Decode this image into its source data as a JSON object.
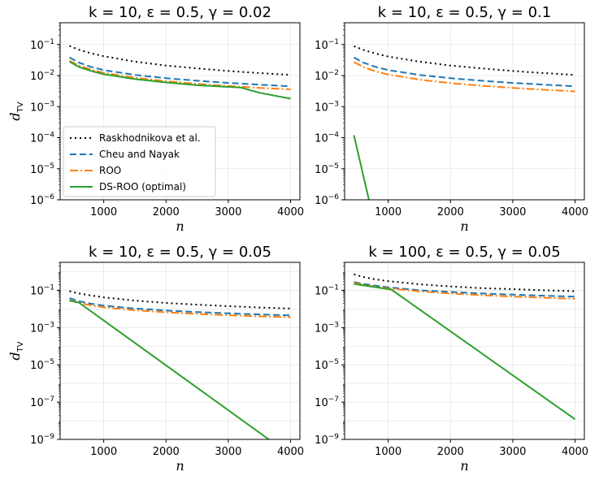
{
  "chart_data": [
    {
      "type": "line",
      "title": "k = 10,  ε = 0.5,  γ = 0.02",
      "xlabel": "n",
      "ylabel": "d_TV",
      "xlim": [
        300,
        4150
      ],
      "ylim_exp": [
        -6,
        -0.3
      ],
      "xticks": [
        1000,
        2000,
        3000,
        4000
      ],
      "yticks_exp": [
        -6,
        -5,
        -4,
        -3,
        -2,
        -1
      ],
      "legend": "center-left",
      "series": [
        {
          "name": "Raskhodnikova et al.",
          "x": [
            450,
            600,
            800,
            1000,
            1500,
            2000,
            2500,
            3000,
            3500,
            4000
          ],
          "y": [
            0.09,
            0.068,
            0.052,
            0.042,
            0.028,
            0.021,
            0.017,
            0.014,
            0.012,
            0.0105
          ]
        },
        {
          "name": "Cheu and Nayak",
          "x": [
            450,
            600,
            800,
            1000,
            1500,
            2000,
            2500,
            3000,
            3500,
            4000
          ],
          "y": [
            0.038,
            0.026,
            0.019,
            0.015,
            0.0105,
            0.0082,
            0.0068,
            0.0058,
            0.0051,
            0.0045
          ]
        },
        {
          "name": "ROO",
          "x": [
            450,
            600,
            800,
            1000,
            1500,
            2000,
            2500,
            3000,
            3500,
            4000
          ],
          "y": [
            0.03,
            0.021,
            0.0155,
            0.0122,
            0.0085,
            0.0066,
            0.0054,
            0.0046,
            0.004,
            0.0036
          ]
        },
        {
          "name": "DS-ROO (optimal)",
          "x": [
            450,
            600,
            800,
            1000,
            1500,
            2000,
            2500,
            3000,
            3200,
            3500,
            4000
          ],
          "y": [
            0.028,
            0.019,
            0.014,
            0.011,
            0.0077,
            0.006,
            0.0049,
            0.0043,
            0.0041,
            0.0028,
            0.0018
          ]
        }
      ]
    },
    {
      "type": "line",
      "title": "k = 10,  ε = 0.5,  γ = 0.1",
      "xlabel": "n",
      "ylabel": "",
      "xlim": [
        300,
        4150
      ],
      "ylim_exp": [
        -6,
        -0.3
      ],
      "xticks": [
        1000,
        2000,
        3000,
        4000
      ],
      "yticks_exp": [
        -6,
        -5,
        -4,
        -3,
        -2,
        -1
      ],
      "series": [
        {
          "name": "Raskhodnikova et al.",
          "x": [
            450,
            600,
            800,
            1000,
            1500,
            2000,
            2500,
            3000,
            3500,
            4000
          ],
          "y": [
            0.088,
            0.067,
            0.051,
            0.041,
            0.028,
            0.021,
            0.017,
            0.014,
            0.012,
            0.0105
          ]
        },
        {
          "name": "Cheu and Nayak",
          "x": [
            450,
            600,
            800,
            1000,
            1500,
            2000,
            2500,
            3000,
            3500,
            4000
          ],
          "y": [
            0.038,
            0.026,
            0.019,
            0.015,
            0.0105,
            0.0082,
            0.0068,
            0.0058,
            0.0051,
            0.0045
          ]
        },
        {
          "name": "ROO",
          "x": [
            450,
            600,
            800,
            1000,
            1500,
            2000,
            2500,
            3000,
            3500,
            4000
          ],
          "y": [
            0.027,
            0.019,
            0.0135,
            0.0108,
            0.0074,
            0.0057,
            0.0047,
            0.004,
            0.0035,
            0.0031
          ]
        },
        {
          "name": "DS-ROO (optimal)",
          "x": [
            450,
            690
          ],
          "y": [
            0.00012,
            1e-06
          ]
        }
      ]
    },
    {
      "type": "line",
      "title": "k = 10,  ε = 0.5,  γ = 0.05",
      "xlabel": "n",
      "ylabel": "d_TV",
      "xlim": [
        300,
        4150
      ],
      "ylim_exp": [
        -9,
        0.5
      ],
      "xticks": [
        1000,
        2000,
        3000,
        4000
      ],
      "yticks_exp": [
        -9,
        -7,
        -5,
        -3,
        -1
      ],
      "series": [
        {
          "name": "Raskhodnikova et al.",
          "x": [
            450,
            600,
            800,
            1000,
            1500,
            2000,
            2500,
            3000,
            3500,
            4000
          ],
          "y": [
            0.09,
            0.068,
            0.052,
            0.042,
            0.028,
            0.021,
            0.017,
            0.014,
            0.012,
            0.0105
          ]
        },
        {
          "name": "Cheu and Nayak",
          "x": [
            450,
            600,
            800,
            1000,
            1500,
            2000,
            2500,
            3000,
            3500,
            4000
          ],
          "y": [
            0.038,
            0.026,
            0.019,
            0.015,
            0.0105,
            0.0082,
            0.0068,
            0.0058,
            0.0051,
            0.0045
          ]
        },
        {
          "name": "ROO",
          "x": [
            450,
            600,
            800,
            1000,
            1500,
            2000,
            2500,
            3000,
            3500,
            4000
          ],
          "y": [
            0.03,
            0.021,
            0.0155,
            0.0122,
            0.0085,
            0.0066,
            0.0054,
            0.0046,
            0.004,
            0.0036
          ]
        },
        {
          "name": "DS-ROO (optimal)",
          "x": [
            450,
            600,
            3650
          ],
          "y": [
            0.028,
            0.022,
            1e-09
          ]
        }
      ]
    },
    {
      "type": "line",
      "title": "k = 100,  ε = 0.5,  γ = 0.05",
      "xlabel": "n",
      "ylabel": "",
      "xlim": [
        300,
        4150
      ],
      "ylim_exp": [
        -9,
        0.5
      ],
      "xticks": [
        1000,
        2000,
        3000,
        4000
      ],
      "yticks_exp": [
        -9,
        -7,
        -5,
        -3,
        -1
      ],
      "series": [
        {
          "name": "Raskhodnikova et al.",
          "x": [
            450,
            600,
            800,
            1000,
            1500,
            2000,
            2500,
            3000,
            3500,
            4000
          ],
          "y": [
            0.72,
            0.52,
            0.38,
            0.31,
            0.21,
            0.16,
            0.13,
            0.115,
            0.1,
            0.09
          ]
        },
        {
          "name": "Cheu and Nayak",
          "x": [
            450,
            600,
            800,
            1000,
            1500,
            2000,
            2500,
            3000,
            3500,
            4000
          ],
          "y": [
            0.28,
            0.22,
            0.175,
            0.145,
            0.1,
            0.082,
            0.068,
            0.058,
            0.051,
            0.046
          ]
        },
        {
          "name": "ROO",
          "x": [
            450,
            600,
            800,
            1000,
            1500,
            2000,
            2500,
            3000,
            3500,
            4000
          ],
          "y": [
            0.25,
            0.2,
            0.155,
            0.128,
            0.088,
            0.068,
            0.055,
            0.046,
            0.04,
            0.035
          ]
        },
        {
          "name": "DS-ROO (optimal)",
          "x": [
            450,
            1050,
            4000
          ],
          "y": [
            0.22,
            0.11,
            1.2e-08
          ]
        }
      ]
    }
  ],
  "legend_labels": [
    "Raskhodnikova et al.",
    "Cheu and Nayak",
    "ROO",
    "DS-ROO (optimal)"
  ],
  "styles": {
    "Raskhodnikova et al.": {
      "color": "#000000",
      "dash": "2,4"
    },
    "Cheu and Nayak": {
      "color": "#1f77b4",
      "dash": "8,4"
    },
    "ROO": {
      "color": "#ff7f0e",
      "dash": "10,3,2,3"
    },
    "DS-ROO (optimal)": {
      "color": "#2ca02c",
      "dash": ""
    }
  }
}
